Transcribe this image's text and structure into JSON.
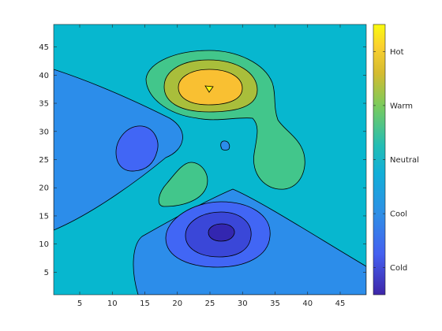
{
  "chart_data": {
    "type": "contour",
    "title": "",
    "xlabel": "",
    "ylabel": "",
    "xlim": [
      1,
      49
    ],
    "ylim": [
      1,
      49
    ],
    "x_ticks": [
      5,
      10,
      15,
      20,
      25,
      30,
      35,
      40,
      45
    ],
    "y_ticks": [
      5,
      10,
      15,
      20,
      25,
      30,
      35,
      40,
      45
    ],
    "grid": false,
    "colormap": "parula",
    "colorbar": {
      "position": "right",
      "labels": [
        "Cold",
        "Cool",
        "Neutral",
        "Warm",
        "Hot"
      ],
      "label_levels": [
        -2,
        -1,
        0,
        1,
        2
      ],
      "range": [
        -2.5,
        2.5
      ]
    },
    "background_level_color": "#07B7CF",
    "regions": [
      {
        "name": "left-cool-wedge",
        "level": "Cool",
        "color": "#2C8DEA"
      },
      {
        "name": "left-cold-blob",
        "level": "Cold",
        "color": "#4166F5"
      },
      {
        "name": "bottom-cool-wedge",
        "level": "Cool",
        "color": "#2C8DEA"
      },
      {
        "name": "bottom-cold-ring",
        "level": "Cold",
        "color": "#4166F5"
      },
      {
        "name": "bottom-colder-ring",
        "level": "Cold",
        "color": "#3A47D8"
      },
      {
        "name": "bottom-coldest-core",
        "level": "Cold",
        "color": "#3326B0"
      },
      {
        "name": "small-cold-spot",
        "level": "Cool",
        "color": "#2C8DEA"
      },
      {
        "name": "warm-outer",
        "level": "Neutral",
        "color": "#42C68B"
      },
      {
        "name": "warm-ring",
        "level": "Warm",
        "color": "#A9BE3B"
      },
      {
        "name": "warm-core",
        "level": "Warm",
        "color": "#F9C032"
      },
      {
        "name": "hot-peak",
        "level": "Hot",
        "color": "#F9FB0E"
      },
      {
        "name": "small-neutral-blob",
        "level": "Neutral",
        "color": "#42C68B"
      }
    ]
  }
}
